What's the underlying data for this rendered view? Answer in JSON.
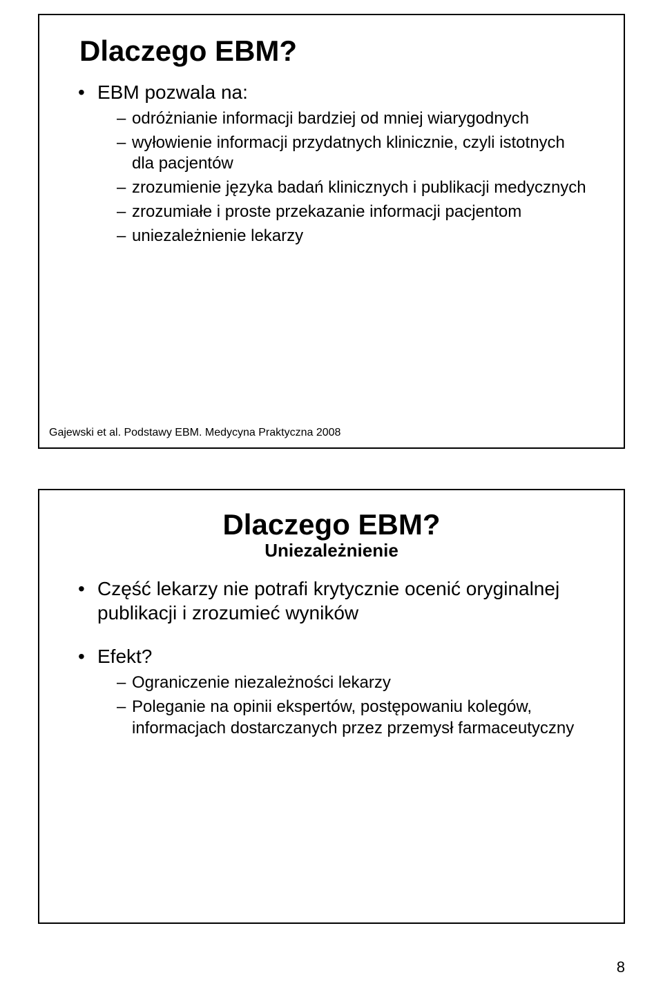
{
  "slide1": {
    "title": "Dlaczego EBM?",
    "bullets": [
      {
        "text": "EBM pozwala na:",
        "sub": [
          "odróżnianie informacji bardziej od mniej wiarygodnych",
          "wyłowienie informacji przydatnych klinicznie, czyli istotnych dla pacjentów",
          "zrozumienie języka badań klinicznych i publikacji medycznych",
          "zrozumiałe i proste przekazanie informacji pacjentom",
          "uniezależnienie lekarzy"
        ]
      }
    ],
    "citation": "Gajewski et al. Podstawy EBM. Medycyna Praktyczna 2008"
  },
  "slide2": {
    "title": "Dlaczego EBM?",
    "subtitle": "Uniezależnienie",
    "bullets": [
      {
        "text": "Część lekarzy nie potrafi krytycznie ocenić oryginalnej publikacji i zrozumieć wyników"
      },
      {
        "text": "Efekt?",
        "sub": [
          "Ograniczenie niezależności lekarzy",
          "Poleganie na opinii ekspertów, postępowaniu kolegów, informacjach dostarczanych przez przemysł farmaceutyczny"
        ]
      }
    ]
  },
  "pageNumber": "8"
}
